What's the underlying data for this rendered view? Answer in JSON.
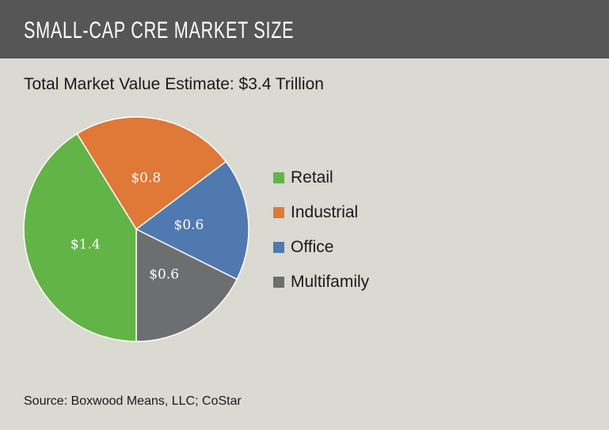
{
  "header": {
    "title": "SMALL-CAP CRE MARKET SIZE"
  },
  "subtitle": "Total Market Value Estimate: $3.4 Trillion",
  "source": "Source: Boxwood Means, LLC; CoStar",
  "chart_data": {
    "type": "pie",
    "title": "SMALL-CAP CRE MARKET SIZE",
    "subtitle": "Total Market Value Estimate: $3.4 Trillion",
    "categories": [
      "Retail",
      "Industrial",
      "Office",
      "Multifamily"
    ],
    "values": [
      1.4,
      0.8,
      0.6,
      0.6
    ],
    "data_labels": [
      "$1.4",
      "$0.8",
      "$0.6",
      "$0.6"
    ],
    "colors": [
      "#63b446",
      "#e07837",
      "#5079b0",
      "#6d6e70"
    ],
    "legend_position": "right"
  }
}
